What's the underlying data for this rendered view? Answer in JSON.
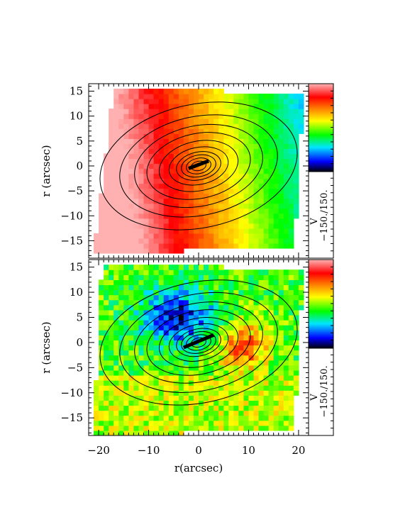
{
  "chart_data": {
    "type": "heatmap",
    "description_free": true,
    "x_axis": {
      "label": "r(arcsec)",
      "range": [
        -22,
        22
      ],
      "ticks": [
        -20,
        -10,
        0,
        10,
        20
      ]
    },
    "panels": [
      {
        "id": "top",
        "ylabel": "r (arcsec)",
        "y_range": [
          -18.5,
          16.5
        ],
        "y_ticks": [
          15,
          10,
          5,
          0,
          -5,
          -10,
          -15
        ],
        "colorbar_label": "V",
        "colorbar_range_text": "−150./150.",
        "bar_segment": {
          "x1": -2,
          "y1": -0.5,
          "x2": 2,
          "y2": 1
        }
      },
      {
        "id": "bottom",
        "ylabel": "r (arcsec)",
        "y_range": [
          -18.5,
          16.5
        ],
        "y_ticks": [
          15,
          10,
          5,
          0,
          -5,
          -10,
          -15
        ],
        "colorbar_label": "V",
        "colorbar_range_text": "−150./150.",
        "bar_segment": {
          "x1": -3,
          "y1": -1,
          "x2": 3,
          "y2": 1.5
        }
      }
    ],
    "colorbar_stops": [
      "#000000",
      "#0000ff",
      "#00e5ff",
      "#00ff00",
      "#ffff00",
      "#ff7f00",
      "#ff0000",
      "#ffb0b0"
    ],
    "contour_levels": [
      1.5,
      2.5,
      3.5,
      4.5,
      6,
      8,
      10.5,
      13,
      16,
      20
    ]
  }
}
